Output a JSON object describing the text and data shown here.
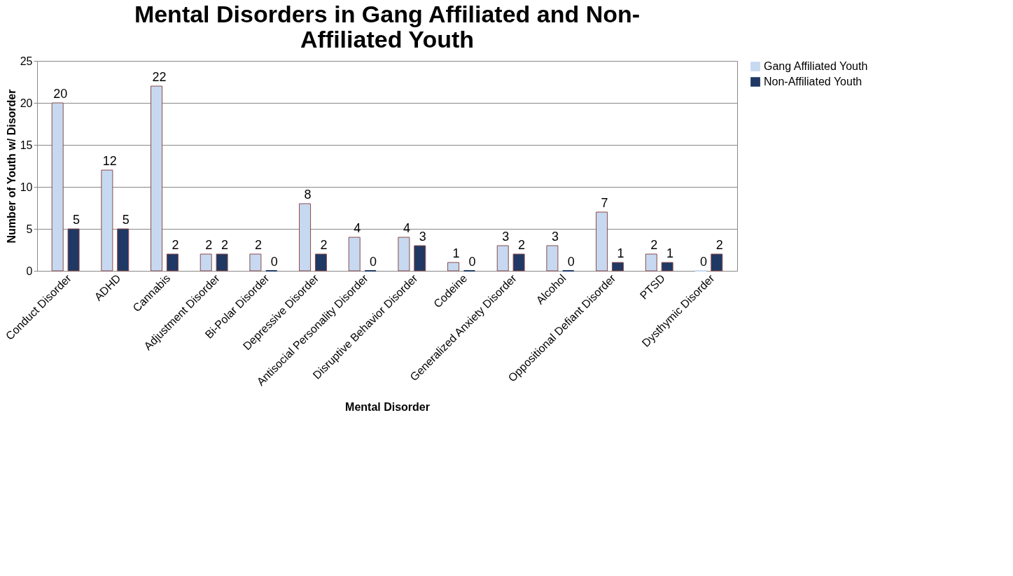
{
  "chart_data": {
    "type": "bar",
    "title": "Mental Disorders in Gang Affiliated and Non-Affiliated Youth",
    "xlabel": "Mental Disorder",
    "ylabel": "Number of Youth w/ Disorder",
    "categories": [
      "Conduct Disorder",
      "ADHD",
      "Cannabis",
      "Adjustment Disorder",
      "Bi-Polar Disorder",
      "Depressive Disorder",
      "Antisocial Personality Disorder",
      "Disruptive Behavior Disorder",
      "Codeine",
      "Generalized Anxiety Disorder",
      "Alcohol",
      "Oppositional Defiant Disorder",
      "PTSD",
      "Dysthymic Disorder"
    ],
    "series": [
      {
        "name": "Gang Affiliated Youth",
        "color": "#c6d9f1",
        "values": [
          20,
          12,
          22,
          2,
          2,
          8,
          4,
          4,
          1,
          3,
          3,
          7,
          2,
          0
        ]
      },
      {
        "name": "Non-Affiliated Youth",
        "color": "#1f3864",
        "values": [
          5,
          5,
          2,
          2,
          0,
          2,
          0,
          3,
          0,
          2,
          0,
          1,
          1,
          2
        ]
      }
    ],
    "ylim": [
      0,
      25
    ],
    "yticks": [
      0,
      5,
      10,
      15,
      20,
      25
    ],
    "grid": "y",
    "legend": "right",
    "data_labels": true
  }
}
